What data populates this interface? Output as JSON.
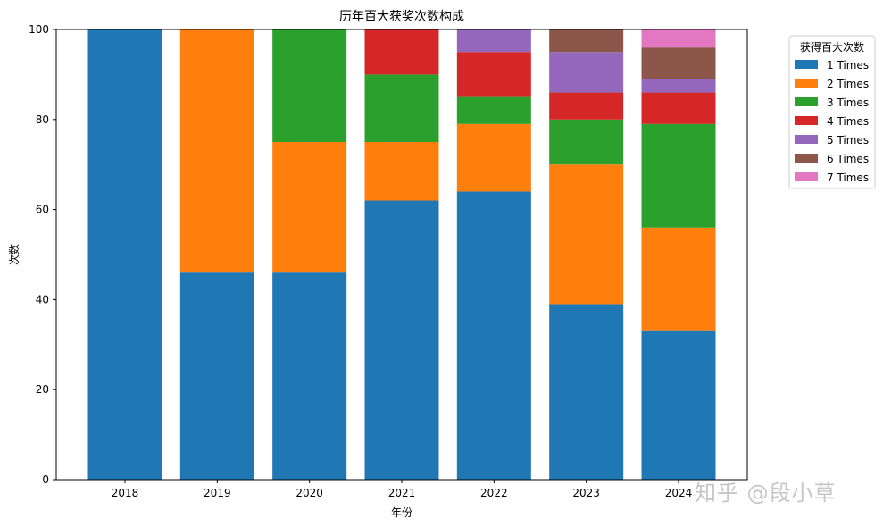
{
  "chart_data": {
    "type": "bar",
    "stacked": true,
    "title": "历年百大获奖次数构成",
    "xlabel": "年份",
    "ylabel": "次数",
    "ylim": [
      0,
      100
    ],
    "yticks": [
      0,
      20,
      40,
      60,
      80,
      100
    ],
    "categories": [
      "2018",
      "2019",
      "2020",
      "2021",
      "2022",
      "2023",
      "2024"
    ],
    "legend": {
      "title": "获得百大次数",
      "placement": "outside-top-right"
    },
    "grid": false,
    "series": [
      {
        "name": "1 Times",
        "color": "#1f77b4",
        "values": [
          100,
          46,
          46,
          62,
          64,
          39,
          33
        ]
      },
      {
        "name": "2 Times",
        "color": "#ff7f0e",
        "values": [
          0,
          54,
          29,
          13,
          15,
          31,
          23
        ]
      },
      {
        "name": "3 Times",
        "color": "#2ca02c",
        "values": [
          0,
          0,
          25,
          15,
          6,
          10,
          23
        ]
      },
      {
        "name": "4 Times",
        "color": "#d62728",
        "values": [
          0,
          0,
          0,
          10,
          10,
          6,
          7
        ]
      },
      {
        "name": "5 Times",
        "color": "#9467bd",
        "values": [
          0,
          0,
          0,
          0,
          5,
          9,
          3
        ]
      },
      {
        "name": "6 Times",
        "color": "#8c564b",
        "values": [
          0,
          0,
          0,
          0,
          0,
          5,
          7
        ]
      },
      {
        "name": "7 Times",
        "color": "#e377c2",
        "values": [
          0,
          0,
          0,
          0,
          0,
          0,
          4
        ]
      }
    ]
  },
  "watermark": "知乎 @段小草"
}
